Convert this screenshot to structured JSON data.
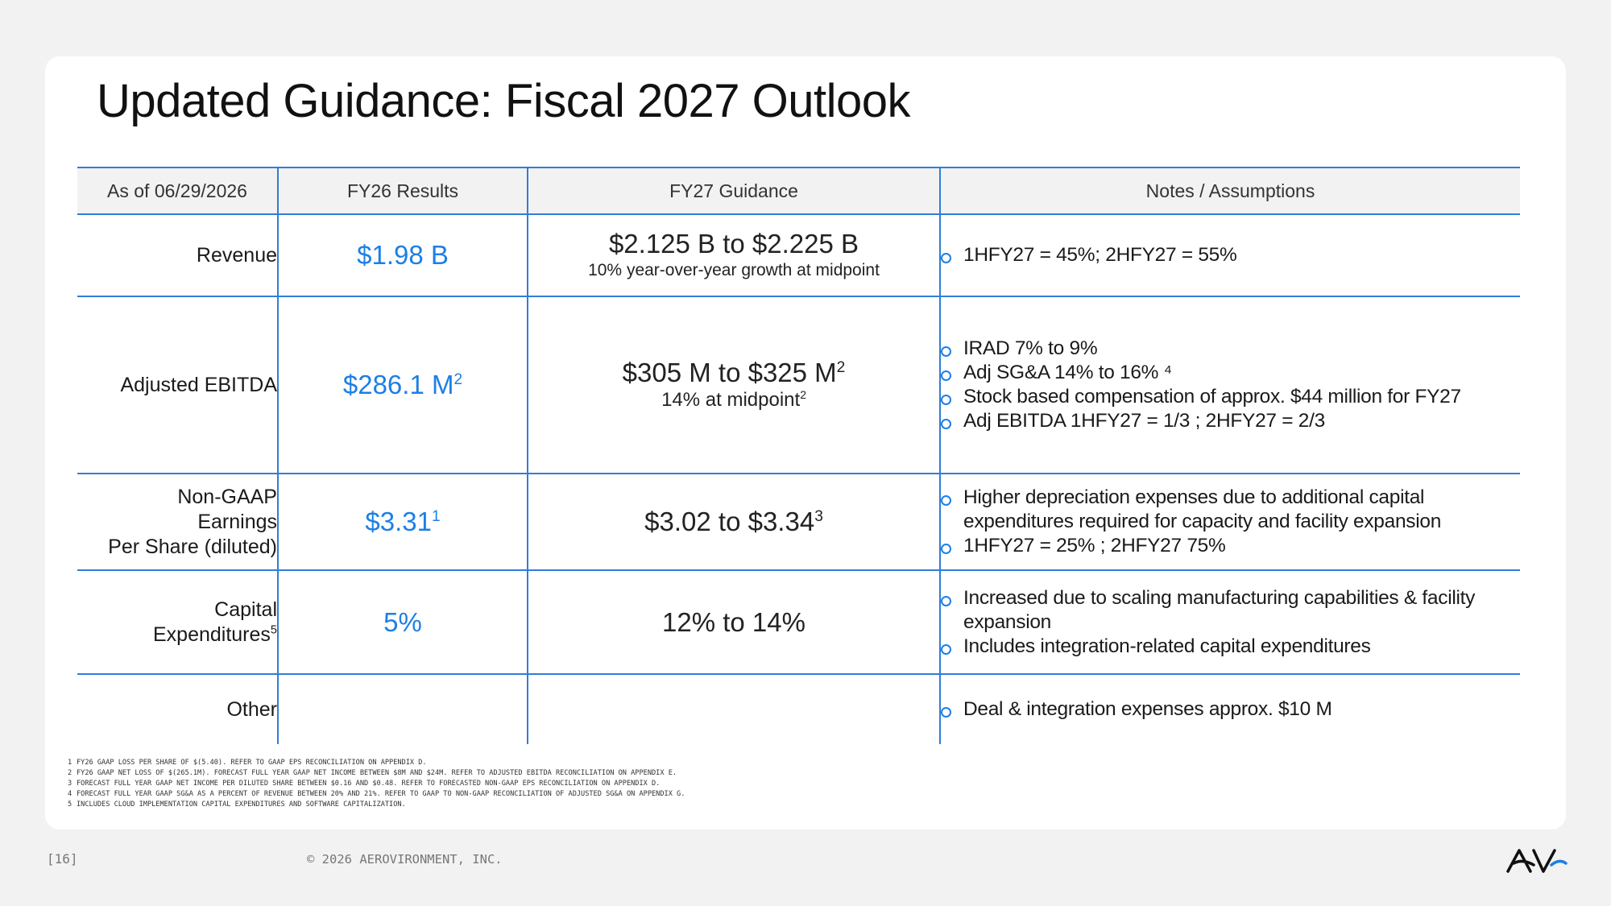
{
  "title": "Updated Guidance: Fiscal 2027 Outlook",
  "table": {
    "headers": [
      "As of 06/29/2026",
      "FY26 Results",
      "FY27 Guidance",
      "Notes / Assumptions"
    ],
    "rows": [
      {
        "label": "Revenue",
        "result": "$1.98 B",
        "result_sup": "",
        "guidance": "$2.125 B to $2.225 B",
        "guidance_sup": "",
        "guidance_sub": "10% year-over-year growth at midpoint",
        "guidance_sub_sup": "",
        "notes": [
          "1HFY27 = 45%; 2HFY27 = 55%"
        ]
      },
      {
        "label": "Adjusted EBITDA",
        "result": "$286.1 M",
        "result_sup": "2",
        "guidance": "$305 M to $325 M",
        "guidance_sup": "2",
        "guidance_sub": "14% at midpoint",
        "guidance_sub_sup": "2",
        "notes": [
          "IRAD 7% to 9%",
          "Adj SG&A 14% to 16% ⁴",
          "Stock based compensation of approx. $44 million for FY27",
          "Adj EBITDA 1HFY27 = 1/3 ;  2HFY27 = 2/3"
        ]
      },
      {
        "label_lines": [
          "Non-GAAP",
          "Earnings",
          "Per Share (diluted)"
        ],
        "result": "$3.31",
        "result_sup": "1",
        "guidance": "$3.02 to $3.34",
        "guidance_sup": "3",
        "notes": [
          "Higher depreciation expenses due to additional capital expenditures required for capacity and facility expansion",
          "1HFY27 = 25% ; 2HFY27 75%"
        ]
      },
      {
        "label_lines": [
          "Capital",
          "Expenditures"
        ],
        "label_sup": "5",
        "result": "5%",
        "guidance": "12% to 14%",
        "notes": [
          "Increased due to scaling manufacturing capabilities & facility expansion",
          "Includes integration-related capital expenditures"
        ]
      },
      {
        "label": "Other",
        "result": "",
        "guidance": "",
        "notes": [
          "Deal & integration expenses approx. $10 M"
        ]
      }
    ]
  },
  "footnotes": [
    {
      "n": "1",
      "text": "FY26 GAAP loss per share of $(5.40). Refer to GAAP EPS reconciliation on Appendix D."
    },
    {
      "n": "2",
      "text": "FY26 GAAP net loss of $(265.1M). Forecast full year GAAP net income between $8M and $24M. Refer to Adjusted EBITDA reconciliation on Appendix E."
    },
    {
      "n": "3",
      "text": "Forecast full year GAAP net income per diluted share between $0.16 and $0.48. Refer to forecasted Non-GAAP EPS reconciliation on Appendix D."
    },
    {
      "n": "4",
      "text": "Forecast full year GAAP SG&A as a percent of revenue between 20% and 21%. Refer to GAAP to Non-GAAP reconciliation of adjusted SG&A on Appendix G."
    },
    {
      "n": "5",
      "text": "Includes cloud implementation capital expenditures and software capitalization."
    }
  ],
  "footer": {
    "page": "[16]",
    "copyright": "© 2026 AEROVIRONMENT, INC.",
    "logo_text": "AV"
  },
  "colors": {
    "accent_blue": "#1d7fe5",
    "rule_blue": "#2f7ed8",
    "header_bg": "#f2f2f2"
  }
}
